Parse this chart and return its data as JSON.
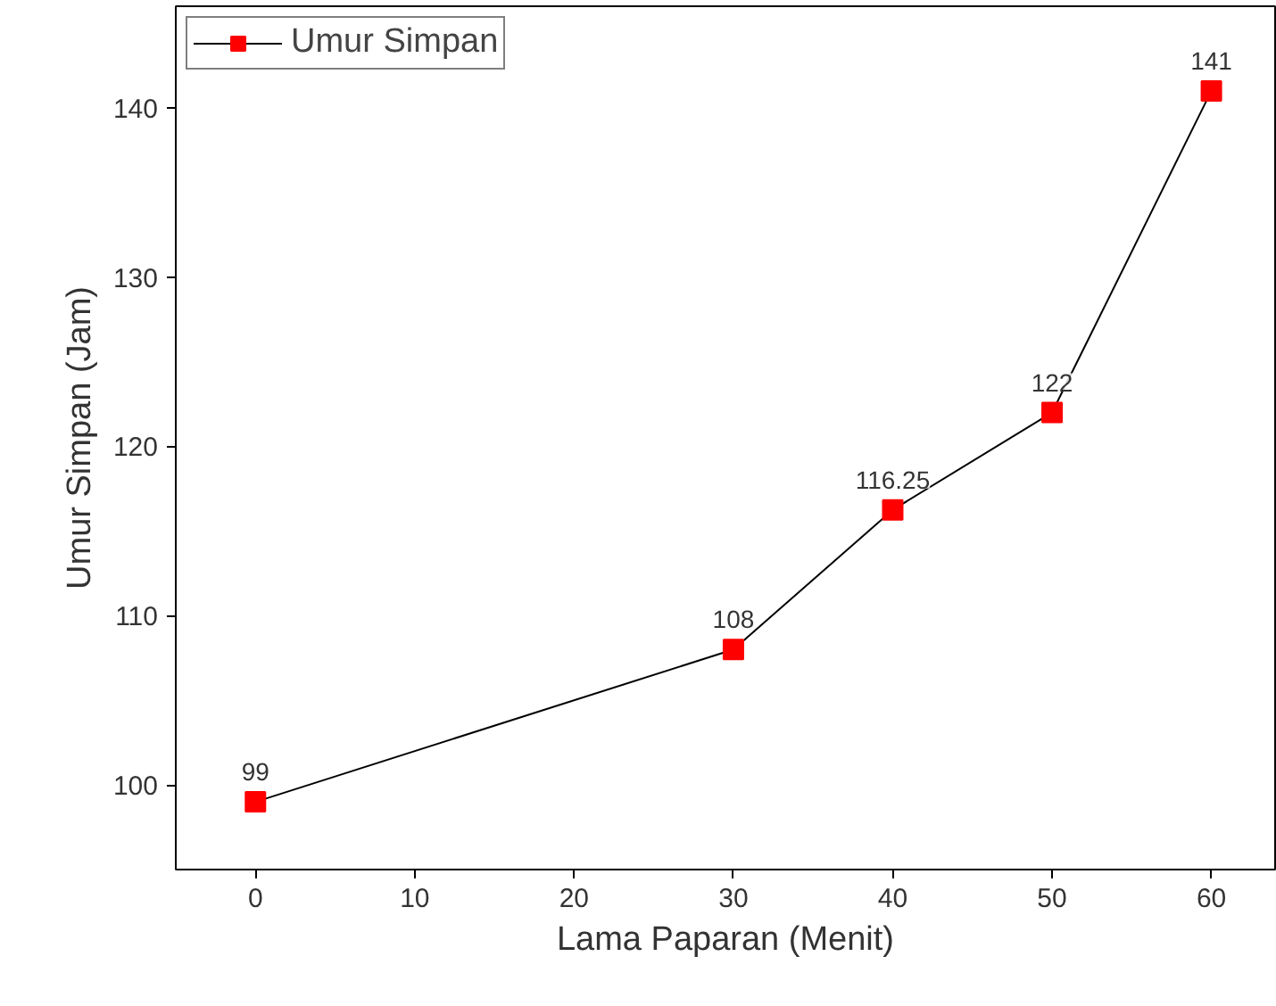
{
  "chart_data": {
    "type": "line",
    "xlabel": "Lama Paparan (Menit)",
    "ylabel": "Umur Simpan (Jam)",
    "x": [
      0,
      30,
      40,
      50,
      60
    ],
    "series": [
      {
        "name": "Umur Simpan",
        "color": "#ff0000",
        "values": [
          99,
          108,
          116.25,
          122,
          141
        ]
      }
    ],
    "xlim": [
      -5,
      64
    ],
    "ylim": [
      95,
      146
    ],
    "xticks": [
      0,
      10,
      20,
      30,
      40,
      50,
      60
    ],
    "yticks": [
      100,
      110,
      120,
      130,
      140
    ],
    "data_labels": true,
    "marker": "square",
    "line_style": "solid",
    "grid": false,
    "legend": "top left"
  }
}
